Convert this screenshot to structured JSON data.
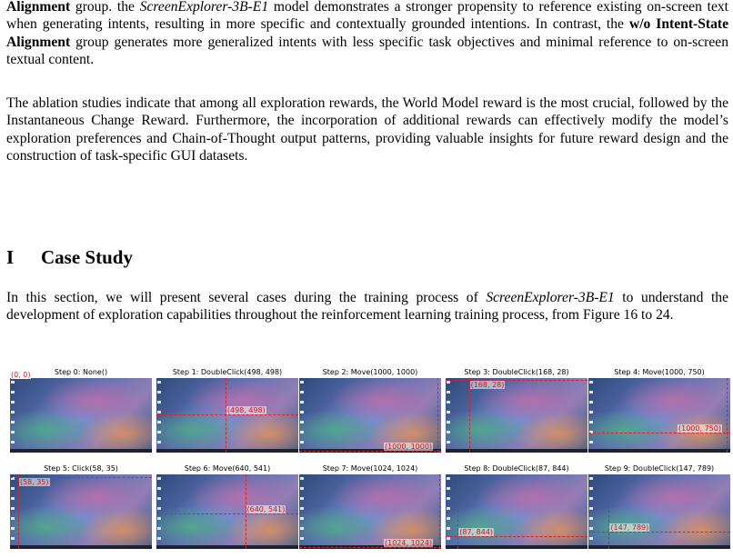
{
  "p1": {
    "s1": "Alignment",
    "s2": " group. the ",
    "s3": "ScreenExplorer-3B-E1",
    "s4": " model demonstrates a stronger propensity to reference existing on-screen text when generating intents, resulting in more specific and contextually grounded intentions. In contrast, the ",
    "s5": "w/o Intent-State Alignment",
    "s6": " group generates more generalized intents with less specific task objectives and minimal reference to on-screen textual content."
  },
  "p2": "The ablation studies indicate that among all exploration rewards, the World Model reward is the most crucial, followed by the Instantaneous Change Reward. Furthermore, the incorporation of additional rewards can effectively modify the model’s exploration preferences and Chain-of-Thought output patterns, providing valuable insights for future reward design and the construction of task-specific GUI datasets.",
  "section": {
    "number": "I",
    "title": "Case Study"
  },
  "p3": {
    "s1": "In this section, we will present several cases during the training process of ",
    "s2": "ScreenExplorer-3B-E1",
    "s3": " to understand the development of exploration capabilities throughout the reinforcement learning training process, from Figure 16 to 24."
  },
  "figure": {
    "origin_label": "(0, 0)",
    "steps": [
      {
        "title": "Step 0: None()",
        "label": ""
      },
      {
        "title": "Step 1: DoubleClick(498, 498)",
        "label": "(498, 498)"
      },
      {
        "title": "Step 2: Move(1000, 1000)",
        "label": "(1000, 1000)"
      },
      {
        "title": "Step 3: DoubleClick(168, 28)",
        "label": "(168, 28)"
      },
      {
        "title": "Step 4: Move(1000, 750)",
        "label": "(1000, 750)"
      },
      {
        "title": "Step 5: Click(58, 35)",
        "label": "(58, 35)"
      },
      {
        "title": "Step 6: Move(640, 541)",
        "label": "(640, 541)"
      },
      {
        "title": "Step 7: Move(1024, 1024)",
        "label": "(1024, 1024)"
      },
      {
        "title": "Step 8: DoubleClick(87, 844)",
        "label": "(87, 844)"
      },
      {
        "title": "Step 9: DoubleClick(147, 789)",
        "label": "(147, 789)"
      }
    ]
  }
}
